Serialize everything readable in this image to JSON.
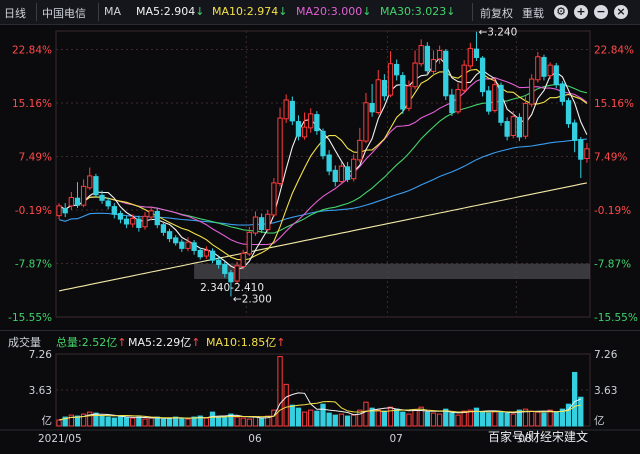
{
  "header": {
    "period": "日线",
    "stock_name": "中国电信",
    "ma_label": "MA",
    "ma5": "MA5:2.904",
    "ma10": "MA10:2.974",
    "ma20": "MA20:3.000",
    "ma30": "MA30:3.023",
    "adjust": "前复权",
    "overlay": "重载",
    "arrow_down": "↓"
  },
  "price_axis": {
    "left_labels": [
      "22.84%",
      "15.16%",
      "7.49%",
      "-0.19%",
      "-7.87%",
      "-15.55%"
    ],
    "right_labels": [
      "22.84%",
      "15.16%",
      "7.49%",
      "-0.19%",
      "-7.87%",
      "-15.55%"
    ]
  },
  "annotations": {
    "high": "←3.240",
    "low": "←2.300",
    "range": "2.340-2.410"
  },
  "volume": {
    "title": "成交量",
    "total": "总量:2.52亿",
    "ma5": "MA5:2.29亿",
    "ma10": "MA10:1.85亿",
    "up_arrow": "↑",
    "axis_left": [
      "7.26",
      "3.63",
      "亿"
    ],
    "axis_right": [
      "7.26",
      "3.63",
      "亿"
    ]
  },
  "x_axis": [
    "2021/05",
    "06",
    "07",
    "08"
  ],
  "watermark": "百家号/财经宋建文",
  "colors": {
    "up": "#ff3b3b",
    "down": "#34d0e0",
    "ma5": "#f2f2f2",
    "ma10": "#f3e14a",
    "ma20": "#e35fd6",
    "ma30": "#42d46a",
    "ma60": "#3a9ef0",
    "ma120": "#f1e9a6"
  },
  "chart_data": {
    "type": "candlestick",
    "candles": [
      {
        "o": -1.0,
        "c": 0.4,
        "h": 0.8,
        "l": -1.5
      },
      {
        "o": 0.0,
        "c": -0.6,
        "h": 0.8,
        "l": -1.2
      },
      {
        "o": 0.4,
        "c": 1.6,
        "h": 2.4,
        "l": -0.2
      },
      {
        "o": 1.5,
        "c": 0.5,
        "h": 3.8,
        "l": 0.1
      },
      {
        "o": 0.5,
        "c": 3.2,
        "h": 4.2,
        "l": 0.2
      },
      {
        "o": 3.0,
        "c": 4.7,
        "h": 5.9,
        "l": 2.7
      },
      {
        "o": 4.6,
        "c": 2.0,
        "h": 5.0,
        "l": 1.6
      },
      {
        "o": 1.9,
        "c": 1.2,
        "h": 2.6,
        "l": 0.7
      },
      {
        "o": 1.1,
        "c": 0.4,
        "h": 1.6,
        "l": -0.1
      },
      {
        "o": 0.3,
        "c": -0.8,
        "h": 0.8,
        "l": -1.4
      },
      {
        "o": -0.7,
        "c": -1.5,
        "h": -0.3,
        "l": -2.1
      },
      {
        "o": -1.5,
        "c": -2.2,
        "h": -1.0,
        "l": -2.8
      },
      {
        "o": -2.2,
        "c": -1.4,
        "h": -0.8,
        "l": -2.7
      },
      {
        "o": -1.5,
        "c": -2.7,
        "h": -1.0,
        "l": -3.3
      },
      {
        "o": -2.6,
        "c": -1.1,
        "h": -0.5,
        "l": -3.0
      },
      {
        "o": -1.2,
        "c": -0.3,
        "h": 0.3,
        "l": -1.7
      },
      {
        "o": -0.4,
        "c": -2.3,
        "h": 0.0,
        "l": -2.8
      },
      {
        "o": -2.3,
        "c": -3.4,
        "h": -1.8,
        "l": -3.9
      },
      {
        "o": -3.3,
        "c": -4.3,
        "h": -2.9,
        "l": -4.8
      },
      {
        "o": -4.2,
        "c": -4.9,
        "h": -3.8,
        "l": -5.3
      },
      {
        "o": -4.8,
        "c": -5.7,
        "h": -4.4,
        "l": -6.2
      },
      {
        "o": -5.7,
        "c": -4.8,
        "h": -4.1,
        "l": -6.1
      },
      {
        "o": -4.9,
        "c": -6.0,
        "h": -4.5,
        "l": -6.6
      },
      {
        "o": -6.0,
        "c": -6.9,
        "h": -5.6,
        "l": -7.3
      },
      {
        "o": -6.8,
        "c": -6.0,
        "h": -5.4,
        "l": -7.2
      },
      {
        "o": -6.1,
        "c": -7.4,
        "h": -5.7,
        "l": -7.8
      },
      {
        "o": -7.4,
        "c": -8.0,
        "h": -6.9,
        "l": -8.6
      },
      {
        "o": -8.0,
        "c": -9.3,
        "h": -7.6,
        "l": -9.9
      },
      {
        "o": -9.2,
        "c": -10.5,
        "h": -8.8,
        "l": -12.6
      },
      {
        "o": -10.4,
        "c": -8.2,
        "h": -7.6,
        "l": -10.8
      },
      {
        "o": -8.3,
        "c": -6.4,
        "h": -5.9,
        "l": -8.7
      },
      {
        "o": -6.5,
        "c": -3.4,
        "h": -2.6,
        "l": -6.8
      },
      {
        "o": -3.5,
        "c": -1.2,
        "h": -0.4,
        "l": -3.9
      },
      {
        "o": -1.3,
        "c": -3.0,
        "h": -0.7,
        "l": -3.5
      },
      {
        "o": -3.0,
        "c": -0.8,
        "h": -0.2,
        "l": -3.3
      },
      {
        "o": -0.9,
        "c": 3.7,
        "h": 4.4,
        "l": -1.2
      },
      {
        "o": 3.6,
        "c": 13.0,
        "h": 14.5,
        "l": 3.2
      },
      {
        "o": 12.9,
        "c": 15.6,
        "h": 16.4,
        "l": 12.3
      },
      {
        "o": 15.4,
        "c": 12.6,
        "h": 16.1,
        "l": 12.0
      },
      {
        "o": 12.5,
        "c": 10.4,
        "h": 13.4,
        "l": 9.8
      },
      {
        "o": 10.3,
        "c": 11.7,
        "h": 13.8,
        "l": 9.9
      },
      {
        "o": 11.6,
        "c": 13.6,
        "h": 14.4,
        "l": 10.9
      },
      {
        "o": 13.5,
        "c": 11.2,
        "h": 14.0,
        "l": 10.6
      },
      {
        "o": 11.1,
        "c": 7.6,
        "h": 11.5,
        "l": 7.1
      },
      {
        "o": 7.7,
        "c": 5.4,
        "h": 8.4,
        "l": 4.8
      },
      {
        "o": 5.5,
        "c": 3.9,
        "h": 6.2,
        "l": 3.2
      },
      {
        "o": 3.9,
        "c": 6.1,
        "h": 6.7,
        "l": 3.5
      },
      {
        "o": 6.0,
        "c": 4.2,
        "h": 6.7,
        "l": 3.8
      },
      {
        "o": 4.3,
        "c": 7.1,
        "h": 7.8,
        "l": 3.9
      },
      {
        "o": 7.0,
        "c": 9.8,
        "h": 11.6,
        "l": 6.6
      },
      {
        "o": 9.7,
        "c": 15.2,
        "h": 16.6,
        "l": 9.4
      },
      {
        "o": 15.1,
        "c": 13.9,
        "h": 17.9,
        "l": 13.2
      },
      {
        "o": 13.8,
        "c": 18.5,
        "h": 19.9,
        "l": 13.5
      },
      {
        "o": 18.4,
        "c": 16.2,
        "h": 19.3,
        "l": 15.5
      },
      {
        "o": 16.3,
        "c": 20.8,
        "h": 22.6,
        "l": 16.0
      },
      {
        "o": 20.7,
        "c": 19.2,
        "h": 21.4,
        "l": 18.4
      },
      {
        "o": 19.1,
        "c": 14.3,
        "h": 19.6,
        "l": 13.6
      },
      {
        "o": 14.4,
        "c": 17.6,
        "h": 18.4,
        "l": 14.0
      },
      {
        "o": 17.5,
        "c": 20.9,
        "h": 22.7,
        "l": 17.1
      },
      {
        "o": 20.8,
        "c": 23.4,
        "h": 24.3,
        "l": 20.4
      },
      {
        "o": 23.3,
        "c": 19.8,
        "h": 23.9,
        "l": 19.2
      },
      {
        "o": 19.7,
        "c": 21.4,
        "h": 22.7,
        "l": 19.2
      },
      {
        "o": 21.5,
        "c": 22.7,
        "h": 23.4,
        "l": 20.8
      },
      {
        "o": 22.6,
        "c": 16.2,
        "h": 22.9,
        "l": 15.6
      },
      {
        "o": 16.3,
        "c": 13.8,
        "h": 17.2,
        "l": 13.3
      },
      {
        "o": 13.9,
        "c": 17.1,
        "h": 18.0,
        "l": 13.6
      },
      {
        "o": 17.0,
        "c": 20.6,
        "h": 21.3,
        "l": 16.6
      },
      {
        "o": 20.5,
        "c": 23.0,
        "h": 23.8,
        "l": 20.1
      },
      {
        "o": 22.9,
        "c": 21.7,
        "h": 25.4,
        "l": 21.2
      },
      {
        "o": 21.6,
        "c": 16.8,
        "h": 21.9,
        "l": 16.1
      },
      {
        "o": 16.9,
        "c": 14.0,
        "h": 17.6,
        "l": 13.5
      },
      {
        "o": 14.1,
        "c": 17.8,
        "h": 18.7,
        "l": 13.8
      },
      {
        "o": 17.7,
        "c": 12.4,
        "h": 18.1,
        "l": 11.9
      },
      {
        "o": 12.5,
        "c": 10.4,
        "h": 13.1,
        "l": 9.8
      },
      {
        "o": 10.5,
        "c": 13.2,
        "h": 14.0,
        "l": 10.1
      },
      {
        "o": 13.1,
        "c": 10.3,
        "h": 13.7,
        "l": 9.7
      },
      {
        "o": 10.4,
        "c": 15.1,
        "h": 16.1,
        "l": 10.0
      },
      {
        "o": 15.0,
        "c": 18.6,
        "h": 19.3,
        "l": 14.6
      },
      {
        "o": 18.5,
        "c": 21.8,
        "h": 22.5,
        "l": 18.1
      },
      {
        "o": 21.7,
        "c": 19.0,
        "h": 22.1,
        "l": 18.4
      },
      {
        "o": 19.1,
        "c": 20.6,
        "h": 21.0,
        "l": 18.6
      },
      {
        "o": 20.5,
        "c": 17.8,
        "h": 20.9,
        "l": 17.3
      },
      {
        "o": 17.9,
        "c": 15.4,
        "h": 18.3,
        "l": 14.8
      },
      {
        "o": 15.5,
        "c": 12.2,
        "h": 15.9,
        "l": 11.6
      },
      {
        "o": 12.3,
        "c": 9.8,
        "h": 12.8,
        "l": 8.1
      },
      {
        "o": 9.9,
        "c": 7.1,
        "h": 10.3,
        "l": 4.4
      },
      {
        "o": 7.2,
        "c": 8.6,
        "h": 9.4,
        "l": 6.6
      }
    ],
    "volume": [
      0.6,
      0.9,
      1.1,
      1.0,
      1.2,
      1.4,
      1.3,
      1.0,
      0.9,
      0.8,
      1.0,
      0.9,
      0.8,
      0.9,
      0.7,
      0.8,
      0.9,
      0.7,
      0.8,
      0.9,
      0.8,
      0.7,
      0.9,
      1.0,
      0.8,
      1.4,
      0.9,
      1.0,
      1.2,
      0.9,
      0.8,
      0.7,
      0.9,
      0.8,
      1.0,
      1.6,
      7.0,
      4.2,
      2.1,
      1.8,
      1.4,
      1.6,
      1.5,
      2.2,
      1.3,
      1.1,
      1.2,
      1.0,
      1.1,
      1.6,
      2.4,
      1.8,
      1.6,
      1.5,
      1.9,
      1.7,
      1.4,
      1.2,
      1.6,
      1.9,
      1.4,
      1.3,
      1.2,
      1.7,
      1.3,
      1.1,
      1.5,
      1.6,
      1.8,
      1.4,
      1.3,
      1.5,
      1.4,
      1.3,
      1.2,
      1.6,
      1.7,
      1.5,
      1.4,
      1.3,
      1.6,
      1.4,
      1.7,
      2.2,
      5.4,
      2.9
    ],
    "y_range_pct": [
      -15.55,
      25.5
    ],
    "vol_range": [
      0,
      7.26
    ],
    "reference_band_pct": [
      -7.9,
      -10.1
    ]
  }
}
